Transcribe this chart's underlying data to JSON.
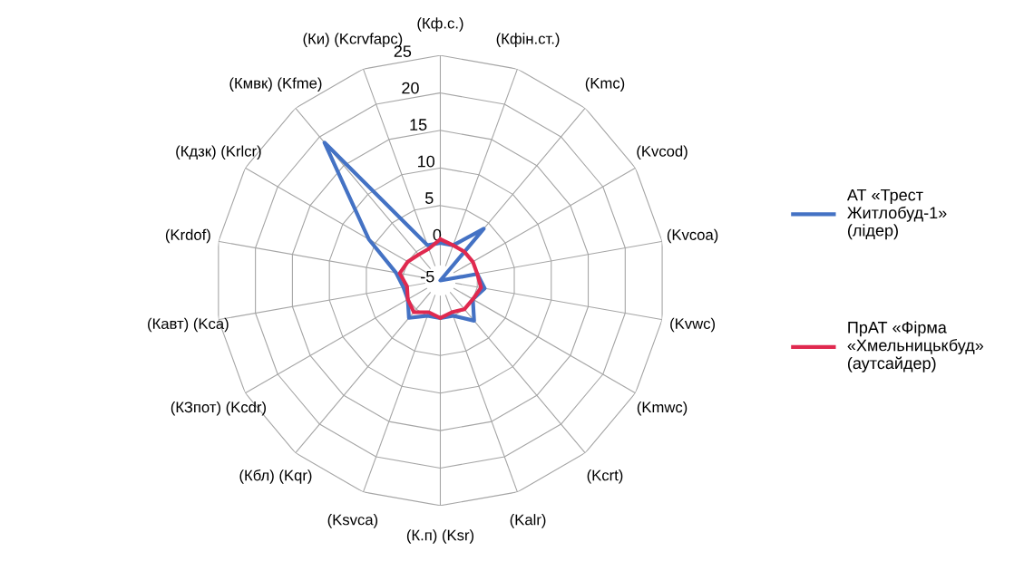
{
  "chart_data": {
    "type": "radar",
    "categories": [
      "(Кф.с.)",
      "(Кфін.ст.)",
      "(Kmc)",
      "(Kvcod)",
      "(Kvcoa)",
      "(Kvwc)",
      "(Kmwc)",
      "(Kcrt)",
      "(Kalr)",
      "(К.п) (Ksr)",
      "(Ksvca)",
      "(Кбл) (Kqr)",
      "(КЗпот) (Kcdr)",
      "(Кавт) (Kca)",
      "(Krdof)",
      "(Кдзк) (Krlcr)",
      "(Кмвк) (Kfme)",
      "(Ки) (Kcrvfapc)"
    ],
    "series": [
      {
        "name": "АТ «Трест\nЖитлобуд-1»\n(лідер)",
        "color": "#4472c4",
        "values": [
          0,
          0,
          4,
          -5,
          0,
          1,
          0,
          2,
          0,
          0,
          0,
          1.5,
          0,
          0,
          1,
          6,
          19,
          0
        ]
      },
      {
        "name": "ПрАТ «Фірма\n«Хмельницькбуд»\n(аутсайдер)",
        "color": "#e0294f",
        "values": [
          0.5,
          0,
          0,
          0,
          0,
          0.5,
          0,
          0,
          -0.5,
          0,
          -0.5,
          0.5,
          0,
          -0.5,
          0.5,
          0,
          -0.5,
          -0.5
        ]
      }
    ],
    "ylim": [
      -5,
      25
    ],
    "yticks": [
      -5,
      0,
      5,
      10,
      15,
      20,
      25
    ],
    "grid": true,
    "legend": "right",
    "marker": "none",
    "line_style": "solid"
  }
}
